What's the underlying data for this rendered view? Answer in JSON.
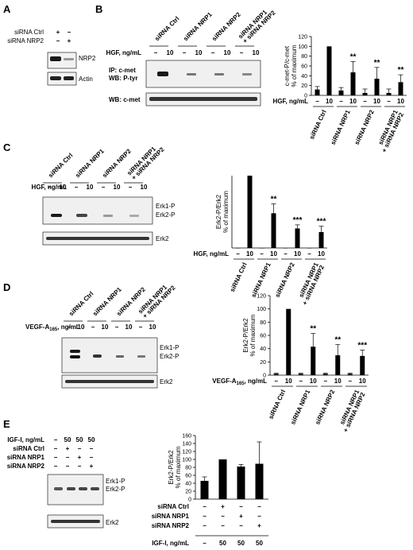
{
  "panels": {
    "A": {
      "letter": "A",
      "rows": [
        {
          "label": "siRNA Ctrl",
          "values": [
            "+",
            "−"
          ]
        },
        {
          "label": "siRNA NRP2",
          "values": [
            "−",
            "+"
          ]
        }
      ],
      "blots": [
        "NRP2",
        "Actin"
      ]
    },
    "B": {
      "letter": "B",
      "lanes": [
        "siRNA Ctrl",
        "siRNA NRP1",
        "siRNA NRP2",
        "siRNA NRP1 + siRNA NRP2"
      ],
      "dose_label": "HGF, ng/mL",
      "doses": [
        "−",
        "10",
        "−",
        "10",
        "−",
        "10",
        "−",
        "10"
      ],
      "blot1_label_line1": "IP: c-met",
      "blot1_label_line2": "WB: P-tyr",
      "blot2_label": "WB: c-met"
    },
    "C": {
      "letter": "C",
      "lanes": [
        "siRNA Ctrl",
        "siRNA NRP1",
        "siRNA NRP2",
        "siRNA NRP1 + siRNA NRP2"
      ],
      "dose_label": "HGF, ng/mL",
      "doses": [
        "−",
        "10",
        "−",
        "10",
        "−",
        "10",
        "−",
        "10"
      ],
      "blot1_bands": [
        "Erk1-P",
        "Erk2-P"
      ],
      "blot2_label": "Erk2"
    },
    "D": {
      "letter": "D",
      "lanes": [
        "siRNA Ctrl",
        "siRNA NRP1",
        "siRNA NRP2",
        "siRNA NRP1 + siRNA NRP2"
      ],
      "dose_label_main": "VEGF-A",
      "dose_label_sub": "165",
      "dose_label_tail": ", ng/mL",
      "doses": [
        "−",
        "10",
        "−",
        "10",
        "−",
        "10",
        "−",
        "10"
      ],
      "blot1_bands": [
        "Erk1-P",
        "Erk2-P"
      ],
      "blot2_label": "Erk2"
    },
    "E": {
      "letter": "E",
      "rows": [
        {
          "label": "IGF-I, ng/mL",
          "values": [
            "−",
            "50",
            "50",
            "50"
          ]
        },
        {
          "label": "siRNA Ctrl",
          "values": [
            "−",
            "+",
            "−",
            "−"
          ]
        },
        {
          "label": "siRNA NRP1",
          "values": [
            "−",
            "−",
            "+",
            "−"
          ]
        },
        {
          "label": "siRNA NRP2",
          "values": [
            "−",
            "−",
            "−",
            "+"
          ]
        }
      ],
      "blot1_bands": [
        "Erk1-P",
        "Erk2-P"
      ],
      "blot2_label": "Erk2"
    }
  },
  "chart_data": [
    {
      "panel": "B",
      "type": "bar",
      "ylabel_line1": "c-met-P/c-met",
      "ylabel_line2": "% of maximum",
      "ylim": [
        0,
        120
      ],
      "yticks": [
        0,
        20,
        40,
        60,
        80,
        100,
        120
      ],
      "x_dose_label": "HGF, ng/mL",
      "x": [
        "−",
        "10",
        "−",
        "10",
        "−",
        "10",
        "−",
        "10"
      ],
      "values": [
        12,
        100,
        10,
        47,
        5,
        34,
        5,
        27
      ],
      "errors": [
        6,
        0,
        6,
        22,
        8,
        23,
        8,
        15
      ],
      "groups": [
        "siRNA Ctrl",
        "siRNA NRP1",
        "siRNA NRP2",
        "siRNA NRP1 + siRNA NRP2"
      ],
      "significance": [
        "",
        "",
        "",
        "**",
        "",
        "**",
        "",
        "**"
      ],
      "color": "#000000"
    },
    {
      "panel": "C",
      "type": "bar",
      "ylabel_line1": "Erk2-P/Erk2",
      "ylabel_line2": "% of maximum",
      "ylim": [
        0,
        100
      ],
      "yticks": [],
      "x_dose_label": "HGF, ng/mL",
      "x": [
        "−",
        "10",
        "−",
        "10",
        "−",
        "10",
        "−",
        "10"
      ],
      "values": [
        0,
        100,
        0,
        48,
        0,
        27,
        0,
        22
      ],
      "errors": [
        0,
        0,
        0,
        13,
        0,
        5,
        0,
        8
      ],
      "groups": [
        "siRNA Ctrl",
        "siRNA NRP1",
        "siRNA NRP2",
        "siRNA NRP1 + siRNA NRP2"
      ],
      "significance": [
        "",
        "",
        "",
        "**",
        "",
        "***",
        "",
        "***"
      ],
      "color": "#000000"
    },
    {
      "panel": "D",
      "type": "bar",
      "ylabel_line1": "Erk2-P/Erk2",
      "ylabel_line2": "% of maximum",
      "ylim": [
        0,
        120
      ],
      "yticks": [
        0,
        20,
        40,
        60,
        80,
        100,
        120
      ],
      "x_dose_label_main": "VEGF-A",
      "x_dose_label_sub": "165",
      "x_dose_label_tail": ", ng/mL",
      "x": [
        "−",
        "10",
        "−",
        "10",
        "−",
        "10",
        "−",
        "10"
      ],
      "values": [
        2,
        100,
        2,
        43,
        2,
        30,
        2,
        29
      ],
      "errors": [
        1,
        0,
        1,
        20,
        1,
        16,
        1,
        9
      ],
      "groups": [
        "siRNA Ctrl",
        "siRNA NRP1",
        "siRNA NRP2",
        "siRNA NRP1 + siRNA NRP2"
      ],
      "significance": [
        "",
        "",
        "",
        "**",
        "",
        "**",
        "",
        "***"
      ],
      "color": "#000000"
    },
    {
      "panel": "E",
      "type": "bar",
      "ylabel_line1": "Erk2-P/Erk2",
      "ylabel_line2": "% of maximum",
      "ylim": [
        0,
        160
      ],
      "yticks": [
        0,
        20,
        40,
        60,
        80,
        100,
        120,
        140,
        160
      ],
      "values": [
        46,
        100,
        82,
        89
      ],
      "errors": [
        10,
        0,
        5,
        55
      ],
      "rows": [
        {
          "label": "siRNA Ctrl",
          "values": [
            "−",
            "+",
            "−",
            "−"
          ]
        },
        {
          "label": "siRNA NRP1",
          "values": [
            "−",
            "−",
            "+",
            "−"
          ]
        },
        {
          "label": "siRNA NRP2",
          "values": [
            "−",
            "−",
            "−",
            "+"
          ]
        },
        {
          "label": "IGF-I, ng/mL",
          "values": [
            "−",
            "50",
            "50",
            "50"
          ]
        }
      ],
      "color": "#000000"
    }
  ]
}
